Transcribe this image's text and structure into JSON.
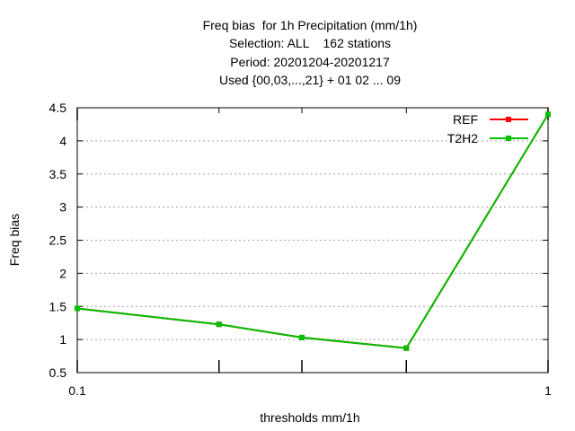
{
  "chart_data": {
    "type": "line",
    "title_lines": [
      "Freq bias  for 1h Precipitation (mm/1h)",
      "Selection: ALL    162 stations",
      "Period: 20201204-20201217",
      "Used {00,03,...,21} + 01 02 ... 09"
    ],
    "xlabel": "thresholds mm/1h",
    "ylabel": "Freq bias",
    "xscale": "log",
    "xlim": [
      0.1,
      1
    ],
    "ylim": [
      0.5,
      4.5
    ],
    "x_tick_labels": [
      "0.1",
      "1"
    ],
    "x_minor_ticks": [
      0.2,
      0.3,
      0.5
    ],
    "y_ticks": [
      "0.5",
      "1",
      "1.5",
      "2",
      "2.5",
      "3",
      "3.5",
      "4",
      "4.5"
    ],
    "grid": "horizontal dotted",
    "legend_position": "top-right",
    "x": [
      0.1,
      0.2,
      0.3,
      0.5,
      1
    ],
    "series": [
      {
        "name": "REF",
        "color": "#ff0000",
        "values": [
          1.47,
          1.23,
          1.03,
          0.87,
          4.4
        ]
      },
      {
        "name": "T2H2",
        "color": "#00c000",
        "values": [
          1.47,
          1.23,
          1.03,
          0.87,
          4.4
        ]
      }
    ]
  }
}
